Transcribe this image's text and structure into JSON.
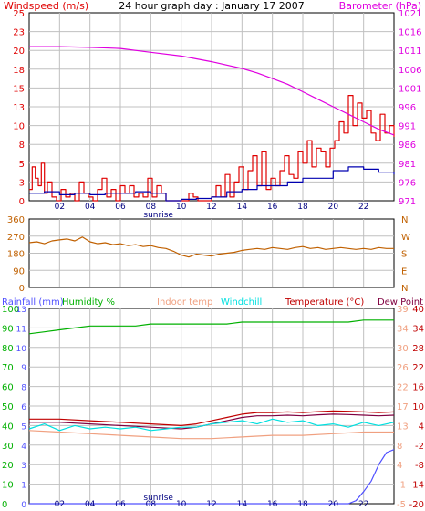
{
  "colors": {
    "windspeed": "#e00000",
    "windspeed_avg": "#0000b0",
    "barometer": "#e000e0",
    "direction": "#c06000",
    "rainfall": "#5050ff",
    "humidity": "#00b000",
    "indoor_temp": "#f0a080",
    "windchill": "#00e0e0",
    "temperature": "#c00000",
    "dew_point": "#800040",
    "sunrise": "#000080",
    "grid": "#c0c0c0",
    "frame": "#000000"
  },
  "chart_data": [
    {
      "type": "line",
      "title": "24 hour graph day : January 17 2007",
      "left_axis_label": "Windspeed (m/s)",
      "right_axis_label": "Barometer (hPa)",
      "x_ticks": [
        "02",
        "04",
        "06",
        "08",
        "10",
        "12",
        "14",
        "16",
        "18",
        "20",
        "22"
      ],
      "xlim": [
        0,
        24
      ],
      "annotation": "sunrise",
      "annotation_x": 8.5,
      "left_ticks": [
        "0",
        "3",
        "5",
        "8",
        "10",
        "13",
        "15",
        "18",
        "20",
        "23",
        "25"
      ],
      "left_lim": [
        0,
        25
      ],
      "right_ticks": [
        "971",
        "976",
        "981",
        "986",
        "991",
        "996",
        "1001",
        "1006",
        "1011",
        "1016",
        "1021"
      ],
      "right_lim": [
        971,
        1021
      ],
      "series": [
        {
          "name": "Windspeed",
          "axis": "left",
          "step": true,
          "color_key": "windspeed",
          "x": [
            0.0,
            0.2,
            0.4,
            0.6,
            0.8,
            1.0,
            1.2,
            1.5,
            1.8,
            2.1,
            2.4,
            2.7,
            3.0,
            3.3,
            3.6,
            3.9,
            4.2,
            4.5,
            4.8,
            5.1,
            5.4,
            5.7,
            6.0,
            6.3,
            6.6,
            6.9,
            7.2,
            7.5,
            7.8,
            8.1,
            8.4,
            8.7,
            9.0,
            9.3,
            9.6,
            9.9,
            10.2,
            10.5,
            10.8,
            11.1,
            11.4,
            11.7,
            12.0,
            12.3,
            12.6,
            12.9,
            13.2,
            13.5,
            13.8,
            14.1,
            14.4,
            14.7,
            15.0,
            15.3,
            15.6,
            15.9,
            16.2,
            16.5,
            16.8,
            17.1,
            17.4,
            17.7,
            18.0,
            18.3,
            18.6,
            18.9,
            19.2,
            19.5,
            19.8,
            20.1,
            20.4,
            20.7,
            21.0,
            21.3,
            21.6,
            21.9,
            22.2,
            22.5,
            22.8,
            23.1,
            23.4,
            23.7,
            24.0
          ],
          "y": [
            1.5,
            4.5,
            3.0,
            2.0,
            5.0,
            1.0,
            2.5,
            0.5,
            0.0,
            1.5,
            0.5,
            1.0,
            0.0,
            2.5,
            1.0,
            0.5,
            0.0,
            1.5,
            3.0,
            0.5,
            1.5,
            0.0,
            2.0,
            1.0,
            2.0,
            0.5,
            1.0,
            0.5,
            3.0,
            0.5,
            2.0,
            1.0,
            0.0,
            0.0,
            0.0,
            0.0,
            0.0,
            1.0,
            0.5,
            0.0,
            0.0,
            0.0,
            0.5,
            2.0,
            0.5,
            3.5,
            0.5,
            2.5,
            4.5,
            1.5,
            4.0,
            6.0,
            2.0,
            6.5,
            1.5,
            3.0,
            2.0,
            4.0,
            6.0,
            3.5,
            3.0,
            6.5,
            5.0,
            8.0,
            4.5,
            7.0,
            6.5,
            4.5,
            7.0,
            8.0,
            10.5,
            9.0,
            14.0,
            10.0,
            13.0,
            11.0,
            12.0,
            9.0,
            8.0,
            11.5,
            9.0,
            10.0,
            8.5
          ]
        },
        {
          "name": "Average windspeed",
          "axis": "left",
          "step": true,
          "color_key": "windspeed_avg",
          "x": [
            0.0,
            1.0,
            2.0,
            3.0,
            4.0,
            5.0,
            6.0,
            7.0,
            8.0,
            9.0,
            10.0,
            11.0,
            12.0,
            13.0,
            14.0,
            15.0,
            16.0,
            17.0,
            18.0,
            19.0,
            20.0,
            21.0,
            22.0,
            23.0,
            24.0
          ],
          "y": [
            1.0,
            1.2,
            0.8,
            1.0,
            0.8,
            1.0,
            1.0,
            1.2,
            1.0,
            0.0,
            0.2,
            0.3,
            0.5,
            1.2,
            1.5,
            2.0,
            2.0,
            2.5,
            3.0,
            3.0,
            4.0,
            4.5,
            4.2,
            3.8,
            3.5
          ]
        },
        {
          "name": "Barometer",
          "axis": "right",
          "step": false,
          "color_key": "barometer",
          "x": [
            0,
            2,
            4,
            6,
            8,
            10,
            12,
            14,
            15,
            16,
            17,
            18,
            19,
            20,
            21,
            22,
            23,
            24
          ],
          "y": [
            1012.0,
            1012.0,
            1011.8,
            1011.5,
            1010.5,
            1009.5,
            1008.0,
            1006.2,
            1005.0,
            1003.5,
            1002.0,
            1000.0,
            998.0,
            996.0,
            994.0,
            992.0,
            990.0,
            988.5
          ]
        }
      ]
    },
    {
      "type": "line",
      "left_ticks": [
        "360",
        "270",
        "180",
        "90",
        "0"
      ],
      "right_ticks": [
        "N",
        "W",
        "S",
        "E",
        "N"
      ],
      "ylim": [
        0,
        360
      ],
      "xlim": [
        0,
        24
      ],
      "series": [
        {
          "name": "Wind direction",
          "color_key": "direction",
          "x": [
            0,
            0.5,
            1,
            1.5,
            2,
            2.5,
            3,
            3.5,
            4,
            4.5,
            5,
            5.5,
            6,
            6.5,
            7,
            7.5,
            8,
            8.5,
            9,
            9.5,
            10,
            10.5,
            11,
            11.5,
            12,
            12.5,
            13,
            13.5,
            14,
            14.5,
            15,
            15.5,
            16,
            16.5,
            17,
            17.5,
            18,
            18.5,
            19,
            19.5,
            20,
            20.5,
            21,
            21.5,
            22,
            22.5,
            23,
            23.5,
            24
          ],
          "y": [
            235,
            240,
            230,
            245,
            250,
            255,
            245,
            265,
            240,
            230,
            235,
            225,
            230,
            220,
            225,
            215,
            220,
            210,
            205,
            190,
            170,
            160,
            175,
            170,
            165,
            175,
            180,
            185,
            195,
            200,
            205,
            200,
            210,
            205,
            200,
            210,
            215,
            205,
            210,
            200,
            205,
            210,
            205,
            200,
            205,
            200,
            210,
            205,
            205
          ]
        }
      ]
    },
    {
      "type": "line",
      "labels": [
        "Rainfall (mm)",
        "Humidity %",
        "Indoor temp",
        "Windchill",
        "Temperature (°C)",
        "Dew Point"
      ],
      "x_ticks": [
        "02",
        "04",
        "06",
        "08",
        "10",
        "12",
        "14",
        "16",
        "18",
        "20",
        "22"
      ],
      "xlim": [
        0,
        24
      ],
      "annotation": "sunrise",
      "annotation_x": 8.5,
      "rain_ticks": [
        "0",
        "1",
        "3",
        "4",
        "5",
        "6",
        "8",
        "9",
        "10",
        "11",
        "13"
      ],
      "rain_lim": [
        0,
        13
      ],
      "humidity_ticks": [
        "0",
        "10",
        "20",
        "30",
        "40",
        "50",
        "60",
        "70",
        "80",
        "90",
        "100"
      ],
      "humidity_lim": [
        0,
        100
      ],
      "temp_ticks_left": [
        "-5",
        "-1",
        "4",
        "8",
        "13",
        "17",
        "22",
        "26",
        "30",
        "34",
        "39"
      ],
      "temp_ticks_right": [
        "-20",
        "-14",
        "-8",
        "-2",
        "4",
        "10",
        "16",
        "22",
        "28",
        "34",
        "40"
      ],
      "temp_lim": [
        -20,
        40
      ],
      "series": [
        {
          "name": "Humidity",
          "axis": "humidity",
          "color_key": "humidity",
          "x": [
            0,
            1,
            2,
            3,
            4,
            5,
            6,
            7,
            8,
            9,
            10,
            11,
            12,
            13,
            14,
            15,
            16,
            17,
            18,
            19,
            20,
            21,
            22,
            23,
            24
          ],
          "y": [
            87,
            88,
            89,
            90,
            91,
            91,
            91,
            91,
            92,
            92,
            92,
            92,
            92,
            92,
            93,
            93,
            93,
            93,
            93,
            93,
            93,
            93,
            94,
            94,
            94
          ]
        },
        {
          "name": "Temperature",
          "axis": "temp",
          "color_key": "temperature",
          "x": [
            0,
            2,
            4,
            6,
            8,
            10,
            11,
            12,
            13,
            14,
            15,
            16,
            17,
            18,
            19,
            20,
            21,
            22,
            23,
            24
          ],
          "y": [
            6.0,
            6.0,
            5.5,
            5.0,
            4.5,
            4.0,
            4.5,
            5.5,
            6.5,
            7.5,
            8.0,
            8.0,
            8.2,
            8.0,
            8.3,
            8.5,
            8.4,
            8.2,
            8.0,
            8.2
          ]
        },
        {
          "name": "Dew Point",
          "axis": "temp",
          "color_key": "dew_point",
          "x": [
            0,
            2,
            4,
            6,
            8,
            10,
            11,
            12,
            13,
            14,
            15,
            16,
            17,
            18,
            19,
            20,
            21,
            22,
            23,
            24
          ],
          "y": [
            5.0,
            5.0,
            4.5,
            4.0,
            3.5,
            3.0,
            3.5,
            4.5,
            5.5,
            6.5,
            7.0,
            7.0,
            7.2,
            7.0,
            7.3,
            7.5,
            7.4,
            7.2,
            7.0,
            7.2
          ]
        },
        {
          "name": "Windchill",
          "axis": "temp",
          "color_key": "windchill",
          "x": [
            0,
            1,
            2,
            3,
            4,
            5,
            6,
            7,
            8,
            9,
            10,
            11,
            12,
            13,
            14,
            15,
            16,
            17,
            18,
            19,
            20,
            21,
            22,
            23,
            24
          ],
          "y": [
            3.0,
            4.5,
            2.5,
            4.0,
            3.0,
            3.5,
            3.0,
            3.5,
            2.5,
            3.0,
            3.5,
            3.5,
            4.5,
            5.0,
            5.5,
            4.5,
            6.0,
            5.0,
            5.5,
            4.0,
            4.5,
            3.5,
            5.0,
            4.0,
            5.0
          ]
        },
        {
          "name": "Indoor temp",
          "axis": "temp",
          "color_key": "indoor_temp",
          "x": [
            0,
            2,
            4,
            6,
            8,
            10,
            12,
            14,
            16,
            18,
            20,
            22,
            24
          ],
          "y": [
            2.5,
            2.0,
            1.5,
            1.0,
            0.5,
            0.0,
            0.0,
            0.5,
            1.0,
            1.0,
            1.5,
            2.0,
            2.0
          ]
        },
        {
          "name": "Rainfall",
          "axis": "rain",
          "color_key": "rainfall",
          "x": [
            0,
            21,
            21.5,
            22,
            22.5,
            23,
            23.5,
            24
          ],
          "y": [
            0,
            0,
            0.2,
            0.8,
            1.5,
            2.6,
            3.4,
            3.6
          ]
        }
      ]
    }
  ]
}
